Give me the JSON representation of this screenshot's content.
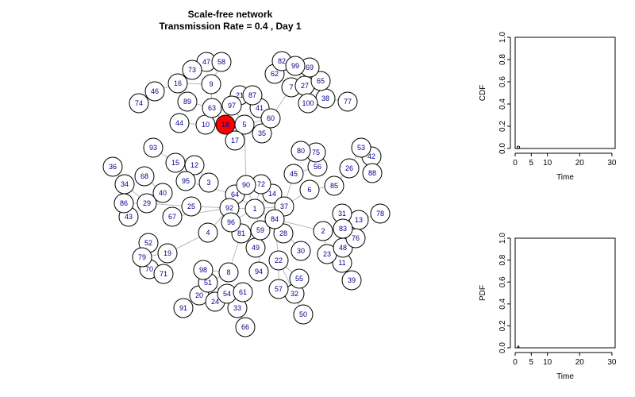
{
  "titles": {
    "line1": "Scale-free network",
    "line2": "Transmission Rate = 0.4 , Day 1"
  },
  "colors": {
    "infected": "#ff0000",
    "susceptible": "#ffffff",
    "edge": "#bbbbbb",
    "label": "#00008b"
  },
  "chart_data": [
    {
      "type": "network",
      "title": "Scale-free network",
      "subtitle": "Transmission Rate = 0.4 , Day 1",
      "infected_nodes": [
        18
      ],
      "nodes": [
        {
          "id": 1
        },
        {
          "id": 2
        },
        {
          "id": 3
        },
        {
          "id": 4
        },
        {
          "id": 5
        },
        {
          "id": 6
        },
        {
          "id": 7
        },
        {
          "id": 8
        },
        {
          "id": 9
        },
        {
          "id": 10
        },
        {
          "id": 11
        },
        {
          "id": 12
        },
        {
          "id": 13
        },
        {
          "id": 14
        },
        {
          "id": 15
        },
        {
          "id": 16
        },
        {
          "id": 17
        },
        {
          "id": 18
        },
        {
          "id": 19
        },
        {
          "id": 20
        },
        {
          "id": 21
        },
        {
          "id": 22
        },
        {
          "id": 23
        },
        {
          "id": 24
        },
        {
          "id": 25
        },
        {
          "id": 26
        },
        {
          "id": 27
        },
        {
          "id": 28
        },
        {
          "id": 29
        },
        {
          "id": 30
        },
        {
          "id": 31
        },
        {
          "id": 32
        },
        {
          "id": 33
        },
        {
          "id": 34
        },
        {
          "id": 35
        },
        {
          "id": 36
        },
        {
          "id": 37
        },
        {
          "id": 38
        },
        {
          "id": 39
        },
        {
          "id": 40
        },
        {
          "id": 41
        },
        {
          "id": 42
        },
        {
          "id": 43
        },
        {
          "id": 44
        },
        {
          "id": 45
        },
        {
          "id": 46
        },
        {
          "id": 47
        },
        {
          "id": 48
        },
        {
          "id": 49
        },
        {
          "id": 50
        },
        {
          "id": 51
        },
        {
          "id": 52
        },
        {
          "id": 53
        },
        {
          "id": 54
        },
        {
          "id": 55
        },
        {
          "id": 56
        },
        {
          "id": 57
        },
        {
          "id": 58
        },
        {
          "id": 59
        },
        {
          "id": 60
        },
        {
          "id": 61
        },
        {
          "id": 62
        },
        {
          "id": 63
        },
        {
          "id": 64
        },
        {
          "id": 65
        },
        {
          "id": 66
        },
        {
          "id": 67
        },
        {
          "id": 68
        },
        {
          "id": 69
        },
        {
          "id": 70
        },
        {
          "id": 71
        },
        {
          "id": 72
        },
        {
          "id": 73
        },
        {
          "id": 74
        },
        {
          "id": 75
        },
        {
          "id": 76
        },
        {
          "id": 77
        },
        {
          "id": 78
        },
        {
          "id": 79
        },
        {
          "id": 80
        },
        {
          "id": 81
        },
        {
          "id": 82
        },
        {
          "id": 83
        },
        {
          "id": 84
        },
        {
          "id": 85
        },
        {
          "id": 86
        },
        {
          "id": 87
        },
        {
          "id": 88
        },
        {
          "id": 89
        },
        {
          "id": 90
        },
        {
          "id": 91
        },
        {
          "id": 92
        },
        {
          "id": 93
        },
        {
          "id": 94
        },
        {
          "id": 95
        },
        {
          "id": 96
        },
        {
          "id": 97
        },
        {
          "id": 98
        },
        {
          "id": 99
        },
        {
          "id": 100
        }
      ],
      "edges": [
        [
          1,
          92
        ],
        [
          1,
          84
        ],
        [
          1,
          90
        ],
        [
          1,
          14
        ],
        [
          1,
          96
        ],
        [
          1,
          59
        ],
        [
          1,
          37
        ],
        [
          1,
          64
        ],
        [
          1,
          72
        ],
        [
          92,
          25
        ],
        [
          92,
          64
        ],
        [
          92,
          81
        ],
        [
          92,
          96
        ],
        [
          92,
          4
        ],
        [
          25,
          29
        ],
        [
          29,
          86
        ],
        [
          29,
          40
        ],
        [
          29,
          34
        ],
        [
          86,
          43
        ],
        [
          86,
          34
        ],
        [
          34,
          36
        ],
        [
          40,
          68
        ],
        [
          4,
          19
        ],
        [
          19,
          79
        ],
        [
          79,
          52
        ],
        [
          79,
          70
        ],
        [
          70,
          71
        ],
        [
          81,
          8
        ],
        [
          8,
          51
        ],
        [
          8,
          98
        ],
        [
          51,
          20
        ],
        [
          51,
          54
        ],
        [
          54,
          24
        ],
        [
          54,
          61
        ],
        [
          54,
          33
        ],
        [
          20,
          91
        ],
        [
          33,
          66
        ],
        [
          59,
          49
        ],
        [
          59,
          94
        ],
        [
          84,
          22
        ],
        [
          22,
          57
        ],
        [
          22,
          32
        ],
        [
          22,
          55
        ],
        [
          32,
          50
        ],
        [
          84,
          28
        ],
        [
          84,
          30
        ],
        [
          84,
          2
        ],
        [
          2,
          23
        ],
        [
          2,
          83
        ],
        [
          83,
          31
        ],
        [
          83,
          48
        ],
        [
          83,
          13
        ],
        [
          13,
          76
        ],
        [
          48,
          11
        ],
        [
          11,
          39
        ],
        [
          13,
          78
        ],
        [
          37,
          6
        ],
        [
          6,
          85
        ],
        [
          37,
          45
        ],
        [
          45,
          56
        ],
        [
          56,
          75
        ],
        [
          75,
          80
        ],
        [
          85,
          26
        ],
        [
          26,
          53
        ],
        [
          53,
          42
        ],
        [
          42,
          88
        ],
        [
          90,
          5
        ],
        [
          5,
          18
        ],
        [
          5,
          35
        ],
        [
          5,
          17
        ],
        [
          5,
          60
        ],
        [
          5,
          97
        ],
        [
          18,
          10
        ],
        [
          18,
          63
        ],
        [
          18,
          97
        ],
        [
          10,
          44
        ],
        [
          63,
          89
        ],
        [
          63,
          9
        ],
        [
          9,
          16
        ],
        [
          9,
          58
        ],
        [
          58,
          47
        ],
        [
          47,
          73
        ],
        [
          16,
          46
        ],
        [
          46,
          74
        ],
        [
          97,
          21
        ],
        [
          21,
          87
        ],
        [
          87,
          41
        ],
        [
          41,
          60
        ],
        [
          60,
          7
        ],
        [
          7,
          62
        ],
        [
          62,
          82
        ],
        [
          82,
          99
        ],
        [
          99,
          69
        ],
        [
          99,
          27
        ],
        [
          27,
          65
        ],
        [
          27,
          100
        ],
        [
          65,
          38
        ],
        [
          38,
          77
        ],
        [
          64,
          95
        ],
        [
          95,
          12
        ],
        [
          12,
          15
        ],
        [
          12,
          3
        ],
        [
          15,
          93
        ],
        [
          92,
          67
        ],
        [
          14,
          72
        ]
      ]
    },
    {
      "type": "scatter",
      "title": "",
      "xlabel": "Time",
      "ylabel": "CDF",
      "xlim": [
        0,
        31
      ],
      "ylim": [
        0,
        1
      ],
      "xticks": [
        0,
        5,
        10,
        20,
        30
      ],
      "yticks": [
        0.0,
        0.2,
        0.4,
        0.6,
        0.8,
        1.0
      ],
      "x": [
        1
      ],
      "y": [
        0.01
      ]
    },
    {
      "type": "scatter",
      "title": "",
      "xlabel": "Time",
      "ylabel": "PDF",
      "xlim": [
        0,
        31
      ],
      "ylim": [
        0,
        1
      ],
      "xticks": [
        0,
        5,
        10,
        20,
        30
      ],
      "yticks": [
        0.0,
        0.2,
        0.4,
        0.6,
        0.8,
        1.0
      ],
      "x": [
        1
      ],
      "y": [
        0.01
      ]
    }
  ]
}
